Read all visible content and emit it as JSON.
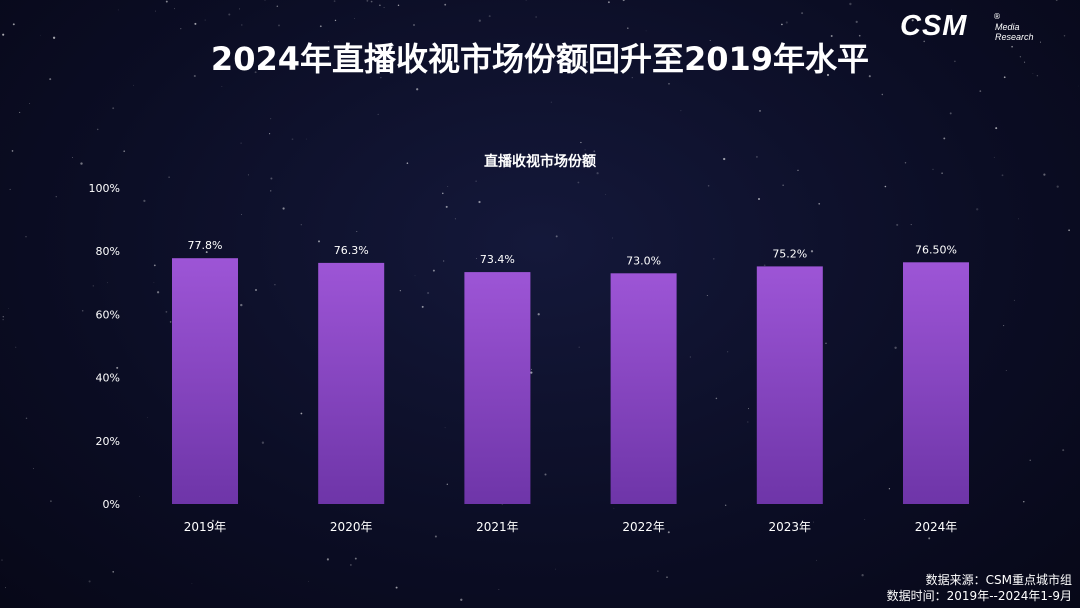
{
  "title": "2024年直播收视市场份额回升至2019年水平",
  "logo": {
    "main": "CSM",
    "sub1": "Media",
    "sub2": "Research",
    "reg": "®"
  },
  "source": {
    "line1": "数据来源：CSM重点城市组",
    "line2": "数据时间：2019年--2024年1-9月"
  },
  "chart_data": {
    "type": "bar",
    "title": "直播收视市场份额",
    "categories": [
      "2019年",
      "2020年",
      "2021年",
      "2022年",
      "2023年",
      "2024年"
    ],
    "values": [
      77.8,
      76.3,
      73.4,
      73.0,
      75.2,
      76.5
    ],
    "value_labels": [
      "77.8%",
      "76.3%",
      "73.4%",
      "73.0%",
      "75.2%",
      "76.50%"
    ],
    "ylim": [
      0,
      100
    ],
    "yticks": [
      0,
      20,
      40,
      60,
      80,
      100
    ],
    "ytick_labels": [
      "0%",
      "20%",
      "40%",
      "60%",
      "80%",
      "100%"
    ],
    "grid": false,
    "bar_color_top": "#9d55d6",
    "bar_color_bottom": "#6e35a8"
  }
}
